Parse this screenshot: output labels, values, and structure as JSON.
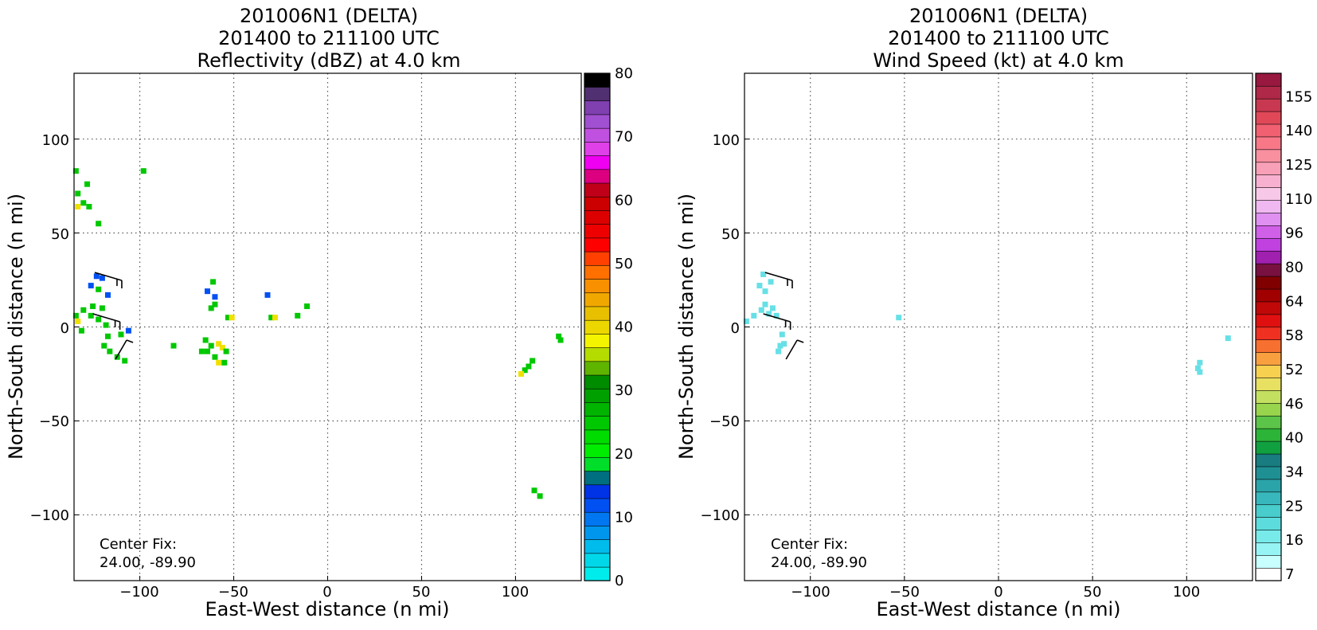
{
  "chart_data": [
    {
      "type": "heatmap",
      "title_lines": [
        "201006N1 (DELTA)",
        "201400 to 211100 UTC",
        "Reflectivity (dBZ) at 4.0 km"
      ],
      "xlabel": "East-West distance (n mi)",
      "ylabel": "North-South distance (n mi)",
      "xlim": [
        -135,
        135
      ],
      "ylim": [
        -135,
        135
      ],
      "xticks": [
        -100,
        -50,
        0,
        50,
        100
      ],
      "yticks": [
        -100,
        -50,
        0,
        50,
        100
      ],
      "xtick_labels": [
        "−100",
        "−50",
        "0",
        "50",
        "100"
      ],
      "ytick_labels": [
        "−100",
        "−50",
        "0",
        "50",
        "100"
      ],
      "grid": true,
      "annotation_lines": [
        "Center Fix:",
        "24.00, -89.90"
      ],
      "colorbar": {
        "label_values": [
          0,
          10,
          20,
          30,
          40,
          50,
          60,
          70,
          80
        ],
        "colors": [
          "#00ecec",
          "#00d8ea",
          "#00bcec",
          "#0096ee",
          "#0076f0",
          "#0050f2",
          "#0032e6",
          "#006f7f",
          "#00de2a",
          "#00ec00",
          "#00dc00",
          "#00c800",
          "#00b400",
          "#00a000",
          "#008c00",
          "#5fb400",
          "#b4dc00",
          "#f4f400",
          "#ecd800",
          "#e8c000",
          "#f0a800",
          "#f89000",
          "#ff7000",
          "#ff4000",
          "#ff0000",
          "#ee0000",
          "#dc0000",
          "#cc0000",
          "#c00018",
          "#dc0080",
          "#f000f0",
          "#e040e8",
          "#c050e0",
          "#a050d0",
          "#8040b0",
          "#503070",
          "#000000"
        ]
      },
      "points": [
        {
          "x": -133,
          "y": 71,
          "v": "green"
        },
        {
          "x": -130,
          "y": 66,
          "v": "green"
        },
        {
          "x": -133,
          "y": 64,
          "v": "yellow"
        },
        {
          "x": -128,
          "y": 76,
          "v": "green"
        },
        {
          "x": -134,
          "y": 83,
          "v": "green"
        },
        {
          "x": -127,
          "y": 64,
          "v": "green"
        },
        {
          "x": -122,
          "y": 55,
          "v": "green"
        },
        {
          "x": -98,
          "y": 83,
          "v": "green"
        },
        {
          "x": -123,
          "y": 27,
          "v": "blue"
        },
        {
          "x": -120,
          "y": 26,
          "v": "blue"
        },
        {
          "x": -126,
          "y": 22,
          "v": "blue"
        },
        {
          "x": -122,
          "y": 20,
          "v": "green"
        },
        {
          "x": -117,
          "y": 17,
          "v": "blue"
        },
        {
          "x": -134,
          "y": 6,
          "v": "green"
        },
        {
          "x": -130,
          "y": 9,
          "v": "green"
        },
        {
          "x": -125,
          "y": 11,
          "v": "green"
        },
        {
          "x": -120,
          "y": 10,
          "v": "green"
        },
        {
          "x": -133,
          "y": 3,
          "v": "yellow"
        },
        {
          "x": -131,
          "y": -2,
          "v": "green"
        },
        {
          "x": -126,
          "y": 6,
          "v": "green"
        },
        {
          "x": -122,
          "y": 4,
          "v": "green"
        },
        {
          "x": -118,
          "y": 1,
          "v": "green"
        },
        {
          "x": -117,
          "y": -5,
          "v": "green"
        },
        {
          "x": -119,
          "y": -10,
          "v": "green"
        },
        {
          "x": -116,
          "y": -13,
          "v": "green"
        },
        {
          "x": -112,
          "y": -16,
          "v": "green"
        },
        {
          "x": -108,
          "y": -18,
          "v": "green"
        },
        {
          "x": -110,
          "y": -4,
          "v": "green"
        },
        {
          "x": -106,
          "y": -2,
          "v": "blue"
        },
        {
          "x": -82,
          "y": -10,
          "v": "green"
        },
        {
          "x": -61,
          "y": 24,
          "v": "green"
        },
        {
          "x": -64,
          "y": 19,
          "v": "blue"
        },
        {
          "x": -60,
          "y": 16,
          "v": "blue"
        },
        {
          "x": -60,
          "y": 12,
          "v": "green"
        },
        {
          "x": -62,
          "y": 10,
          "v": "green"
        },
        {
          "x": -53,
          "y": 5,
          "v": "green"
        },
        {
          "x": -51,
          "y": 5,
          "v": "yellow"
        },
        {
          "x": -65,
          "y": -7,
          "v": "green"
        },
        {
          "x": -62,
          "y": -10,
          "v": "green"
        },
        {
          "x": -58,
          "y": -9,
          "v": "yellow"
        },
        {
          "x": -56,
          "y": -11,
          "v": "yellow"
        },
        {
          "x": -54,
          "y": -13,
          "v": "green"
        },
        {
          "x": -64,
          "y": -13,
          "v": "green"
        },
        {
          "x": -60,
          "y": -16,
          "v": "green"
        },
        {
          "x": -58,
          "y": -19,
          "v": "yellow"
        },
        {
          "x": -55,
          "y": -19,
          "v": "green"
        },
        {
          "x": -67,
          "y": -13,
          "v": "green"
        },
        {
          "x": -32,
          "y": 17,
          "v": "blue"
        },
        {
          "x": -30,
          "y": 5,
          "v": "green"
        },
        {
          "x": -28,
          "y": 5,
          "v": "yellow"
        },
        {
          "x": -16,
          "y": 6,
          "v": "green"
        },
        {
          "x": -11,
          "y": 11,
          "v": "green"
        },
        {
          "x": 123,
          "y": -5,
          "v": "green"
        },
        {
          "x": 124,
          "y": -7,
          "v": "green"
        },
        {
          "x": 109,
          "y": -18,
          "v": "green"
        },
        {
          "x": 107,
          "y": -21,
          "v": "green"
        },
        {
          "x": 105,
          "y": -23,
          "v": "green"
        },
        {
          "x": 103,
          "y": -25,
          "v": "yellow"
        },
        {
          "x": 110,
          "y": -87,
          "v": "green"
        },
        {
          "x": 113,
          "y": -90,
          "v": "green"
        }
      ],
      "barbs": [
        {
          "x": -124,
          "y": 29,
          "dir": "right"
        },
        {
          "x": -125,
          "y": 7,
          "dir": "right"
        },
        {
          "x": -107,
          "y": -7,
          "dir": "up"
        }
      ]
    },
    {
      "type": "heatmap",
      "title_lines": [
        "201006N1 (DELTA)",
        "201400 to 211100 UTC",
        "Wind Speed (kt) at 4.0 km"
      ],
      "xlabel": "East-West distance (n mi)",
      "ylabel": "North-South distance (n mi)",
      "xlim": [
        -135,
        135
      ],
      "ylim": [
        -135,
        135
      ],
      "xticks": [
        -100,
        -50,
        0,
        50,
        100
      ],
      "yticks": [
        -100,
        -50,
        0,
        50,
        100
      ],
      "xtick_labels": [
        "−100",
        "−50",
        "0",
        "50",
        "100"
      ],
      "ytick_labels": [
        "−100",
        "−50",
        "0",
        "50",
        "100"
      ],
      "grid": true,
      "annotation_lines": [
        "Center Fix:",
        "24.00, -89.90"
      ],
      "colorbar": {
        "label_values": [
          7,
          16,
          25,
          34,
          40,
          46,
          52,
          58,
          64,
          80,
          96,
          110,
          125,
          140,
          155
        ],
        "colors": [
          "#ffffff",
          "#c8ffff",
          "#96f4f4",
          "#78eaea",
          "#5cdcdc",
          "#48cccc",
          "#38b8bc",
          "#2aa4a8",
          "#1e9094",
          "#187c80",
          "#10a040",
          "#2cb438",
          "#5cc448",
          "#98d44c",
          "#c4e060",
          "#e8e060",
          "#f8d050",
          "#f8a040",
          "#f87030",
          "#f03020",
          "#e01010",
          "#c00808",
          "#a00000",
          "#800000",
          "#781040",
          "#a020b0",
          "#c040e0",
          "#d060e8",
          "#e090f0",
          "#f0b8f0",
          "#f8c8e8",
          "#f8b0d0",
          "#f8a0b8",
          "#f890a0",
          "#f87888",
          "#f06070",
          "#e04858",
          "#c83850",
          "#b02848",
          "#981840"
        ]
      },
      "points": [
        {
          "x": -130,
          "y": 6,
          "v": "cyan"
        },
        {
          "x": -126,
          "y": 9,
          "v": "cyan"
        },
        {
          "x": -124,
          "y": 12,
          "v": "cyan"
        },
        {
          "x": -120,
          "y": 10,
          "v": "cyan"
        },
        {
          "x": -134,
          "y": 3,
          "v": "cyan"
        },
        {
          "x": -122,
          "y": 7,
          "v": "cyan"
        },
        {
          "x": -118,
          "y": 6,
          "v": "cyan"
        },
        {
          "x": -125,
          "y": 28,
          "v": "cyan"
        },
        {
          "x": -127,
          "y": 22,
          "v": "cyan"
        },
        {
          "x": -124,
          "y": 19,
          "v": "cyan"
        },
        {
          "x": -121,
          "y": 24,
          "v": "cyan"
        },
        {
          "x": -116,
          "y": -10,
          "v": "cyan"
        },
        {
          "x": -117,
          "y": -13,
          "v": "cyan"
        },
        {
          "x": -114,
          "y": -9,
          "v": "cyan"
        },
        {
          "x": -115,
          "y": -4,
          "v": "cyan"
        },
        {
          "x": -53,
          "y": 5,
          "v": "cyan"
        },
        {
          "x": 122,
          "y": -6,
          "v": "cyan"
        },
        {
          "x": 107,
          "y": -19,
          "v": "cyan"
        },
        {
          "x": 106,
          "y": -22,
          "v": "cyan"
        },
        {
          "x": 107,
          "y": -24,
          "v": "cyan"
        }
      ],
      "barbs": [
        {
          "x": -124,
          "y": 29,
          "dir": "right"
        },
        {
          "x": -125,
          "y": 7,
          "dir": "right"
        },
        {
          "x": -107,
          "y": -7,
          "dir": "up"
        }
      ]
    }
  ],
  "colors": {
    "point_palette": {
      "green": "#00c800",
      "yellow": "#f0e000",
      "blue": "#0050f2",
      "cyan": "#66e0e6"
    },
    "grid": "#555555"
  }
}
